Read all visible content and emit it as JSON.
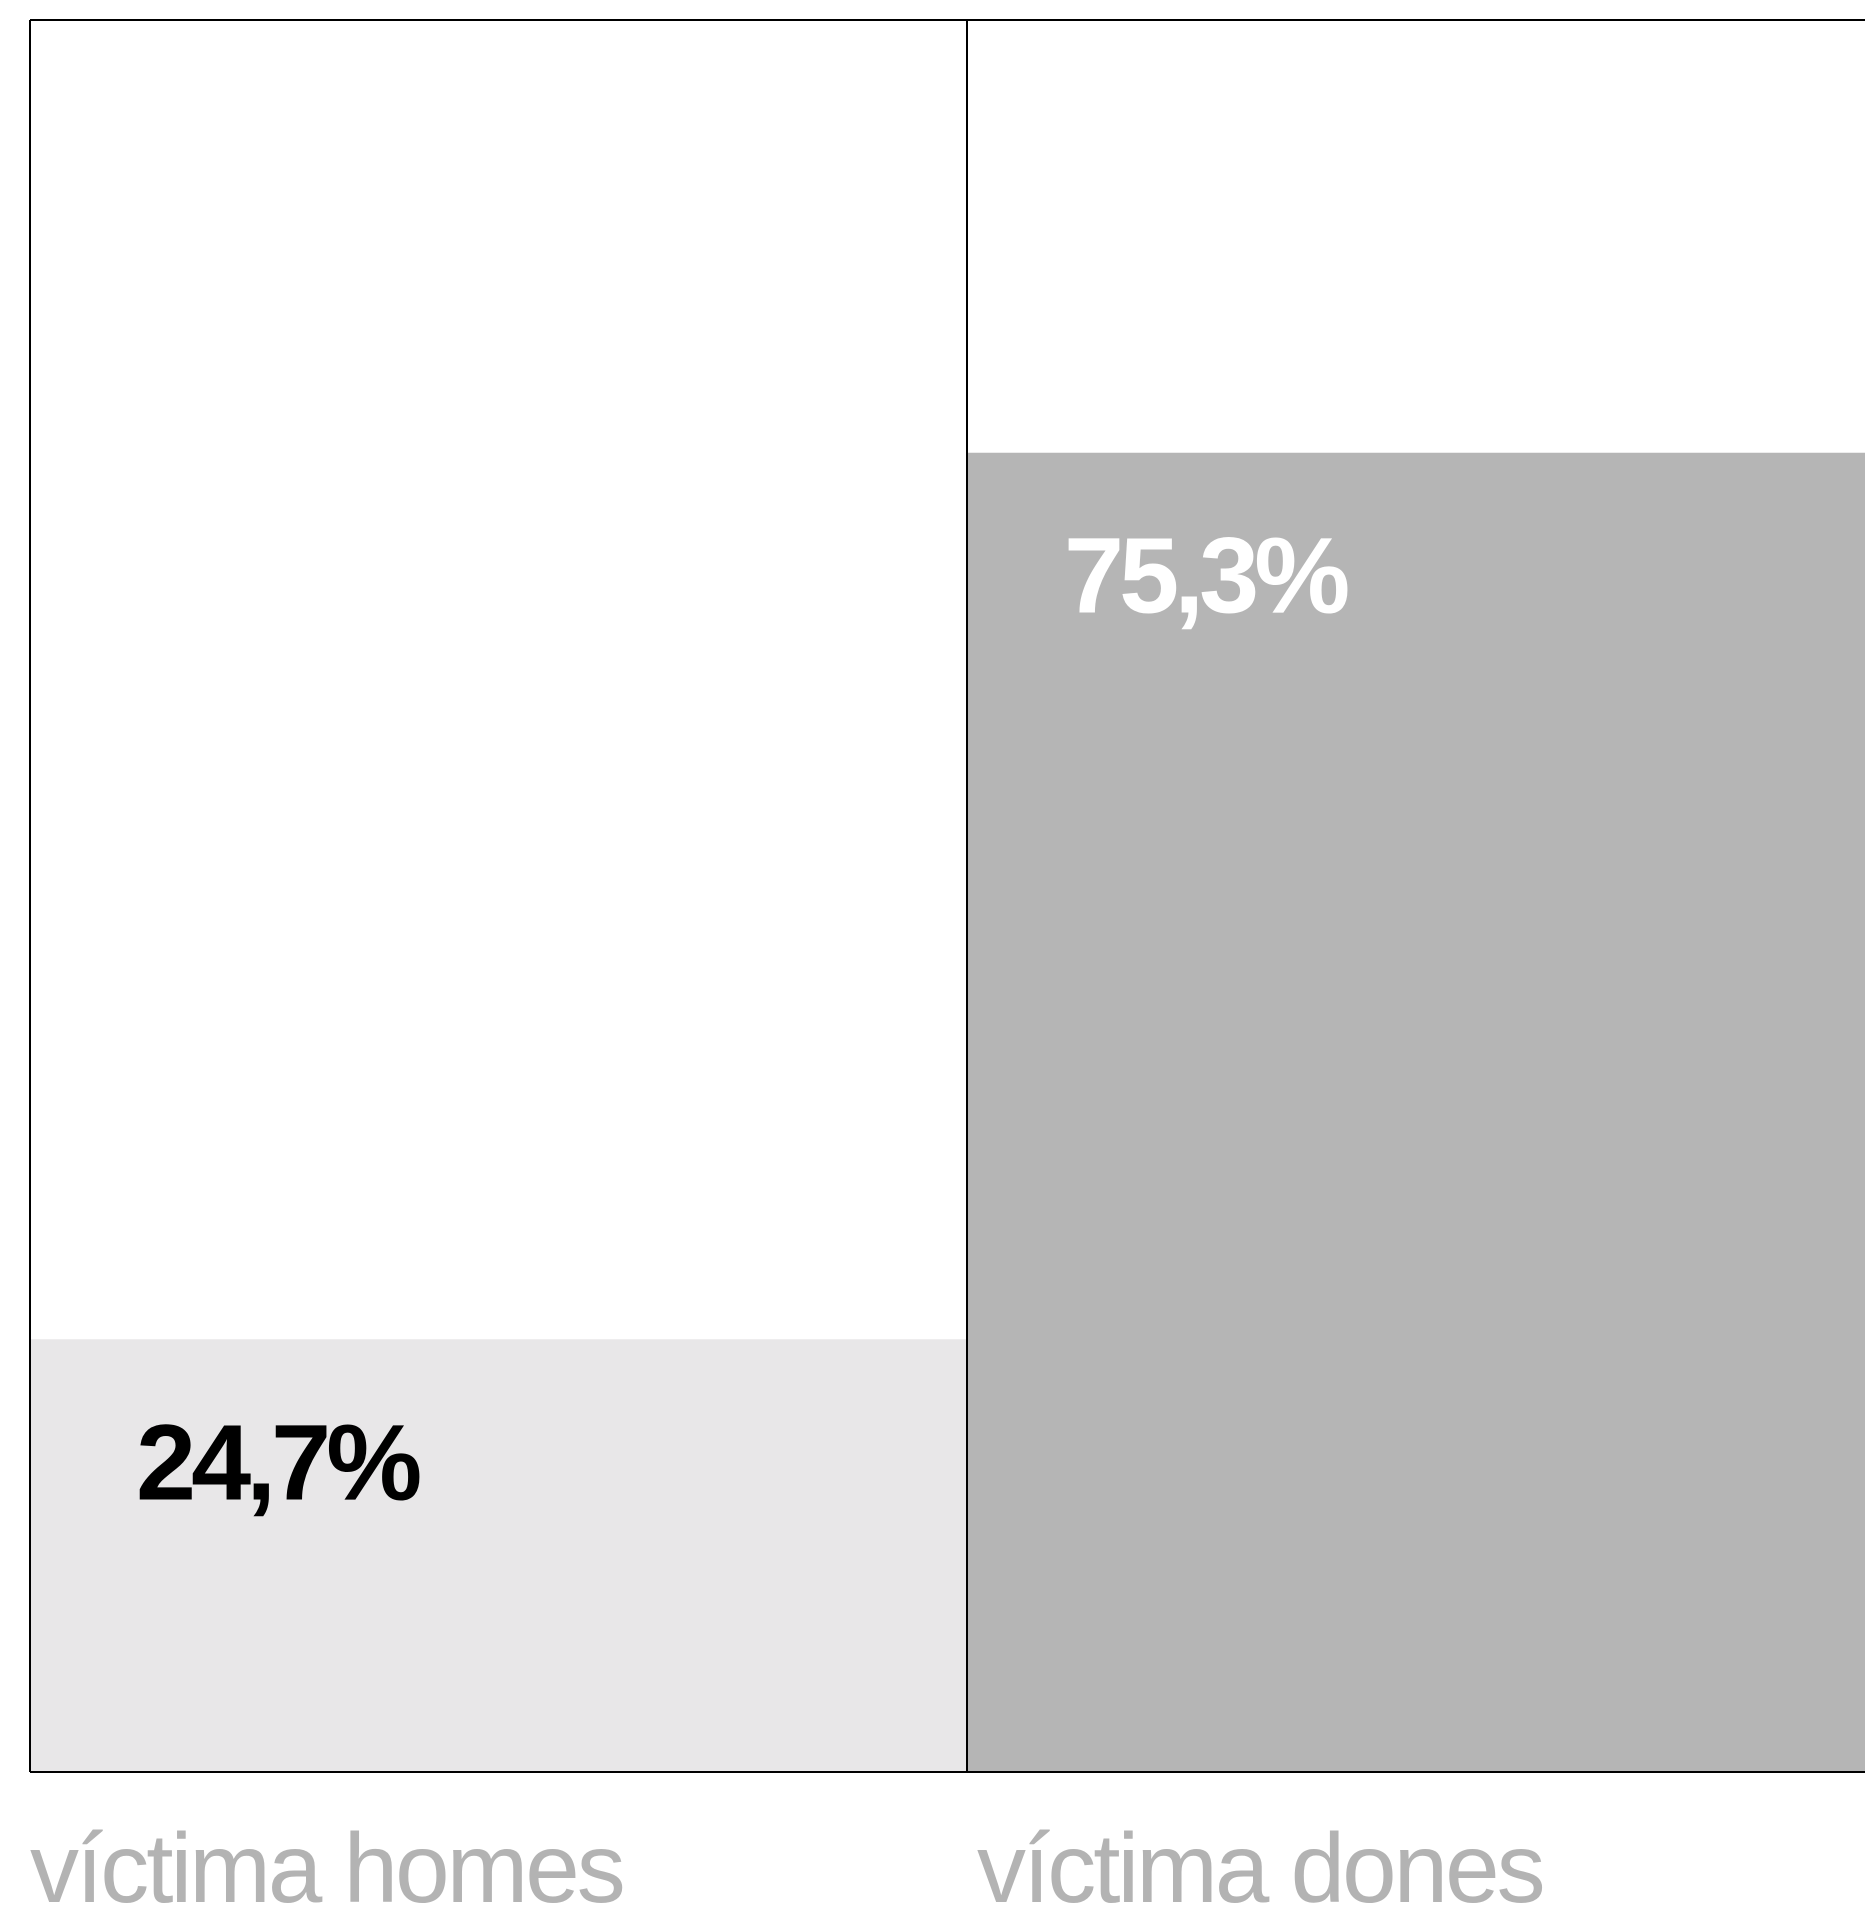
{
  "chart_data": {
    "type": "bar",
    "categories": [
      "víctima homes",
      "víctima dones"
    ],
    "values": [
      24.7,
      75.3
    ],
    "value_labels": [
      "24,7%",
      "75,3%"
    ],
    "ylim": [
      0,
      100
    ],
    "grid": false,
    "legend": "none",
    "title": "",
    "xlabel": "",
    "ylabel": ""
  },
  "colors": {
    "bar_homes": "#e8e7e8",
    "bar_dones": "#b5b5b5",
    "label_homes": "#000000",
    "label_dones": "#ffffff",
    "category_text": "#b3b3b3",
    "frame": "#000000"
  }
}
